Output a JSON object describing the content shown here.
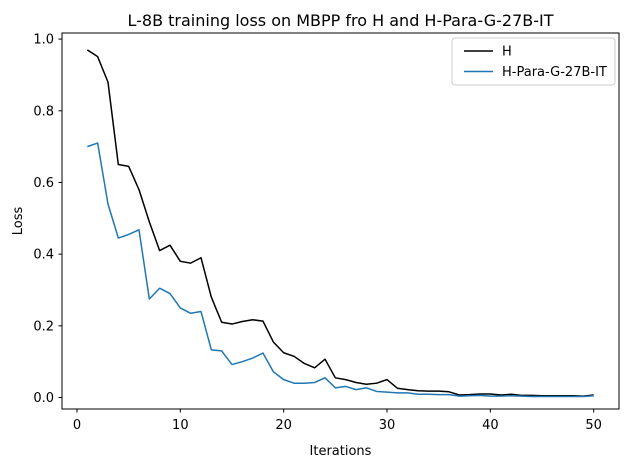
{
  "chart_data": {
    "type": "line",
    "title": "L-8B training loss on MBPP fro H and H-Para-G-27B-IT",
    "xlabel": "Iterations",
    "ylabel": "Loss",
    "x": [
      1,
      2,
      3,
      4,
      5,
      6,
      7,
      8,
      9,
      10,
      11,
      12,
      13,
      14,
      15,
      16,
      17,
      18,
      19,
      20,
      21,
      22,
      23,
      24,
      25,
      26,
      27,
      28,
      29,
      30,
      31,
      32,
      33,
      34,
      35,
      36,
      37,
      38,
      39,
      40,
      41,
      42,
      43,
      44,
      45,
      46,
      47,
      48,
      49,
      50
    ],
    "series": [
      {
        "name": "H",
        "color": "#000000",
        "values": [
          0.97,
          0.951,
          0.88,
          0.65,
          0.645,
          0.58,
          0.49,
          0.41,
          0.425,
          0.38,
          0.375,
          0.39,
          0.28,
          0.21,
          0.205,
          0.212,
          0.217,
          0.213,
          0.155,
          0.125,
          0.115,
          0.095,
          0.083,
          0.107,
          0.055,
          0.05,
          0.042,
          0.037,
          0.04,
          0.05,
          0.026,
          0.022,
          0.019,
          0.018,
          0.018,
          0.016,
          0.007,
          0.008,
          0.01,
          0.01,
          0.007,
          0.009,
          0.006,
          0.006,
          0.005,
          0.005,
          0.005,
          0.005,
          0.004,
          0.007
        ]
      },
      {
        "name": "H-Para-G-27B-IT",
        "color": "#1f77b4",
        "values": [
          0.7,
          0.71,
          0.54,
          0.445,
          0.455,
          0.468,
          0.275,
          0.305,
          0.29,
          0.25,
          0.235,
          0.24,
          0.133,
          0.13,
          0.092,
          0.1,
          0.11,
          0.124,
          0.072,
          0.05,
          0.04,
          0.04,
          0.042,
          0.055,
          0.027,
          0.031,
          0.022,
          0.027,
          0.017,
          0.015,
          0.013,
          0.013,
          0.009,
          0.009,
          0.008,
          0.008,
          0.004,
          0.005,
          0.006,
          0.004,
          0.004,
          0.005,
          0.004,
          0.003,
          0.003,
          0.003,
          0.003,
          0.003,
          0.003,
          0.005
        ]
      }
    ],
    "xlim": [
      -1.45,
      52.45
    ],
    "ylim": [
      -0.032,
      1.017
    ],
    "xticks": [
      0,
      10,
      20,
      30,
      40,
      50
    ],
    "yticks": [
      0.0,
      0.2,
      0.4,
      0.6,
      0.8,
      1.0
    ],
    "xtick_labels": [
      "0",
      "10",
      "20",
      "30",
      "40",
      "50"
    ],
    "ytick_labels": [
      "0.0",
      "0.2",
      "0.4",
      "0.6",
      "0.8",
      "1.0"
    ],
    "grid": false,
    "legend_position": "upper right",
    "background": "#ffffff",
    "legend_border_color": "#cccccc"
  }
}
